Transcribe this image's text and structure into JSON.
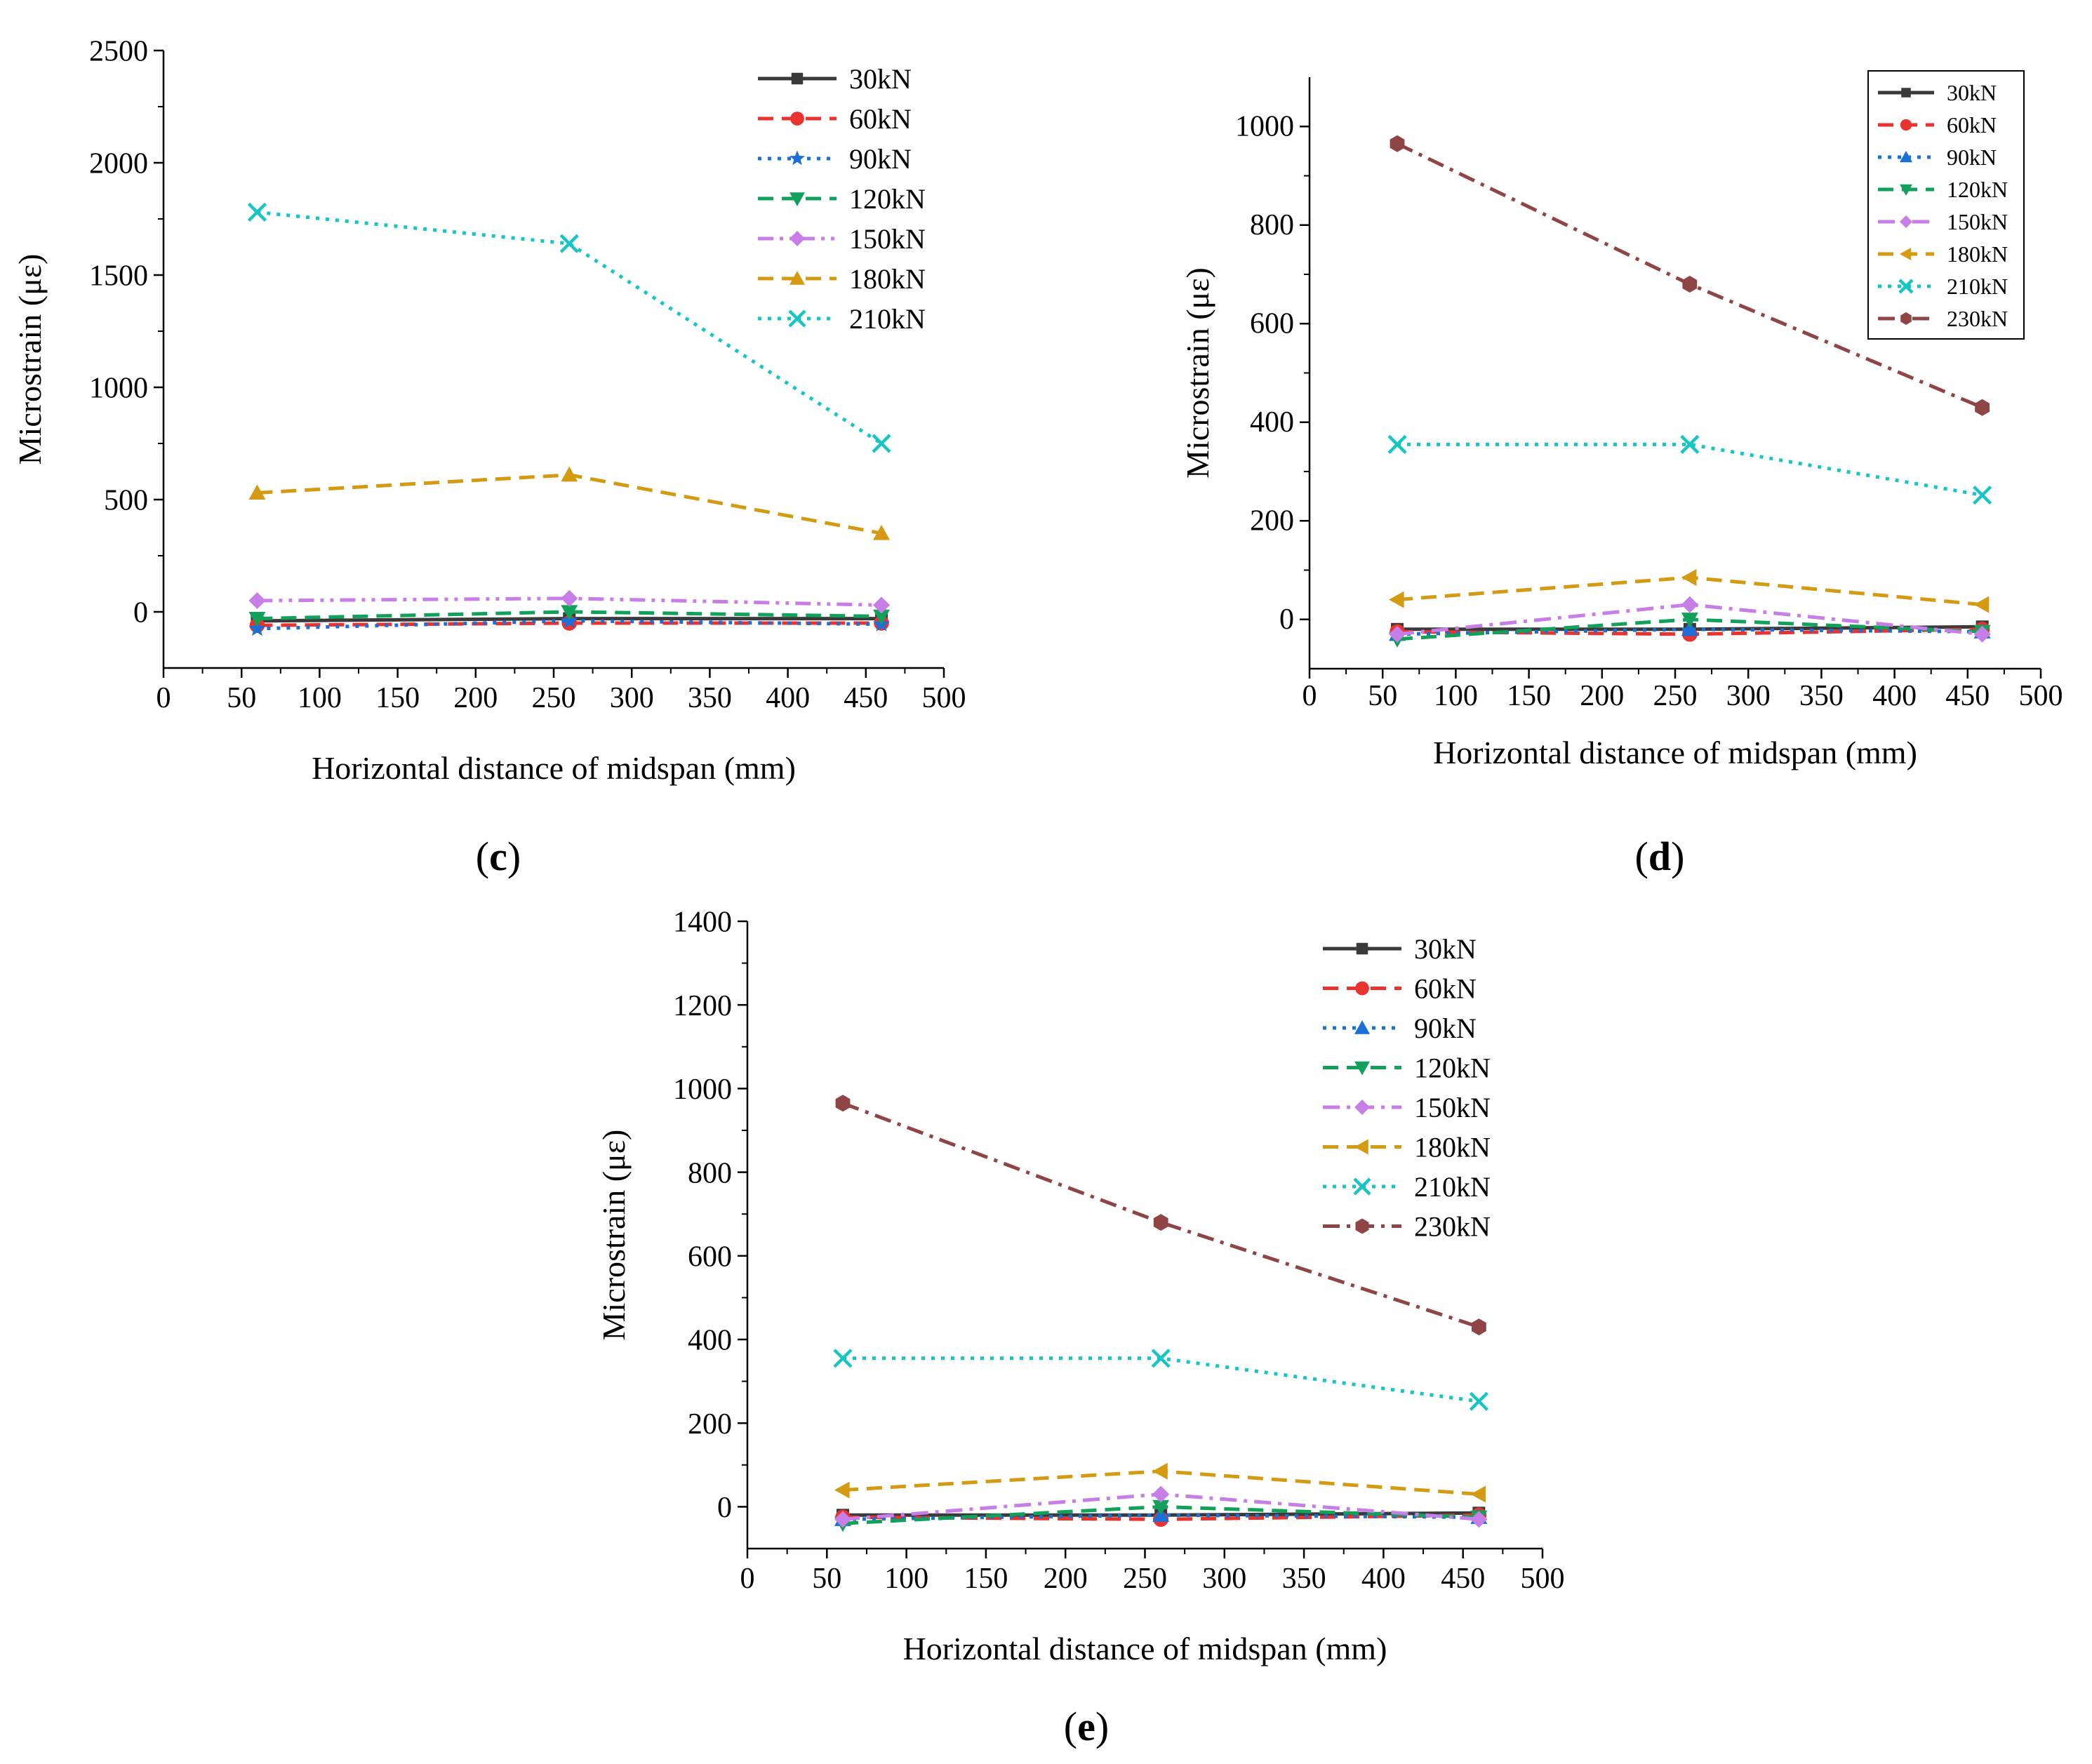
{
  "chart_data": [
    {
      "id": "c",
      "type": "line",
      "panel_label": "c",
      "xlabel": "Horizontal distance of midspan (mm)",
      "ylabel": "Microstrain (με)",
      "xlim": [
        0,
        500
      ],
      "ylim": [
        -250,
        2500
      ],
      "xticks": [
        0,
        50,
        100,
        150,
        200,
        250,
        300,
        350,
        400,
        450,
        500
      ],
      "yticks": [
        0,
        500,
        1000,
        1500,
        2000,
        2500
      ],
      "grid": false,
      "legend_placement": "top-right",
      "x": [
        60,
        260,
        460
      ],
      "series": [
        {
          "name": "30kN",
          "values": [
            -40,
            -30,
            -30
          ],
          "color": "#3a3a3a",
          "marker": "square",
          "dash": "solid"
        },
        {
          "name": "60kN",
          "values": [
            -60,
            -50,
            -50
          ],
          "color": "#e8332f",
          "marker": "circle",
          "dash": "dashed"
        },
        {
          "name": "90kN",
          "values": [
            -75,
            -40,
            -55
          ],
          "color": "#1a6fd8",
          "marker": "star",
          "dash": "dotted"
        },
        {
          "name": "120kN",
          "values": [
            -30,
            0,
            -20
          ],
          "color": "#12a15a",
          "marker": "triangle-down",
          "dash": "dashed"
        },
        {
          "name": "150kN",
          "values": [
            50,
            60,
            30
          ],
          "color": "#c77ee6",
          "marker": "diamond",
          "dash": "dashdotdot"
        },
        {
          "name": "180kN",
          "values": [
            530,
            610,
            350
          ],
          "color": "#d39a12",
          "marker": "triangle-up",
          "dash": "dashed"
        },
        {
          "name": "210kN",
          "values": [
            1780,
            1640,
            750
          ],
          "color": "#17c6c2",
          "marker": "x",
          "dash": "dotted"
        }
      ]
    },
    {
      "id": "d",
      "type": "line",
      "panel_label": "d",
      "xlabel": "Horizontal distance of midspan (mm)",
      "ylabel": "Microstrain (με)",
      "xlim": [
        0,
        500
      ],
      "ylim": [
        -100,
        1100
      ],
      "xticks": [
        0,
        50,
        100,
        150,
        200,
        250,
        300,
        350,
        400,
        450,
        500
      ],
      "yticks": [
        0,
        200,
        400,
        600,
        800,
        1000
      ],
      "grid": false,
      "legend_placement": "top-right",
      "x": [
        60,
        260,
        460
      ],
      "series": [
        {
          "name": "30kN",
          "values": [
            -20,
            -20,
            -15
          ],
          "color": "#3a3a3a",
          "marker": "square",
          "dash": "solid"
        },
        {
          "name": "60kN",
          "values": [
            -25,
            -30,
            -20
          ],
          "color": "#e8332f",
          "marker": "circle",
          "dash": "dashed"
        },
        {
          "name": "90kN",
          "values": [
            -30,
            -20,
            -25
          ],
          "color": "#1a6fd8",
          "marker": "triangle-up",
          "dash": "dotted"
        },
        {
          "name": "120kN",
          "values": [
            -40,
            0,
            -25
          ],
          "color": "#12a15a",
          "marker": "triangle-down",
          "dash": "dashed"
        },
        {
          "name": "150kN",
          "values": [
            -30,
            30,
            -30
          ],
          "color": "#c77ee6",
          "marker": "diamond",
          "dash": "dashdot"
        },
        {
          "name": "180kN",
          "values": [
            40,
            85,
            30
          ],
          "color": "#d39a12",
          "marker": "triangle-left",
          "dash": "dashed"
        },
        {
          "name": "210kN",
          "values": [
            355,
            355,
            252
          ],
          "color": "#17c6c2",
          "marker": "x",
          "dash": "dotted"
        },
        {
          "name": "230kN",
          "values": [
            965,
            680,
            430
          ],
          "color": "#8f4545",
          "marker": "hexagon",
          "dash": "dashdot"
        }
      ]
    },
    {
      "id": "e",
      "type": "line",
      "panel_label": "e",
      "xlabel": "Horizontal distance of midspan (mm)",
      "ylabel": "Microstrain (με)",
      "xlim": [
        0,
        500
      ],
      "ylim": [
        -100,
        1400
      ],
      "xticks": [
        0,
        50,
        100,
        150,
        200,
        250,
        300,
        350,
        400,
        450,
        500
      ],
      "yticks": [
        0,
        200,
        400,
        600,
        800,
        1000,
        1200,
        1400
      ],
      "grid": false,
      "legend_placement": "top-right",
      "x": [
        60,
        260,
        460
      ],
      "series": [
        {
          "name": "30kN",
          "values": [
            -20,
            -20,
            -15
          ],
          "color": "#3a3a3a",
          "marker": "square",
          "dash": "solid"
        },
        {
          "name": "60kN",
          "values": [
            -25,
            -30,
            -20
          ],
          "color": "#e8332f",
          "marker": "circle",
          "dash": "dashed"
        },
        {
          "name": "90kN",
          "values": [
            -30,
            -20,
            -25
          ],
          "color": "#1a6fd8",
          "marker": "triangle-up",
          "dash": "dotted"
        },
        {
          "name": "120kN",
          "values": [
            -40,
            0,
            -25
          ],
          "color": "#12a15a",
          "marker": "triangle-down",
          "dash": "dashed"
        },
        {
          "name": "150kN",
          "values": [
            -30,
            30,
            -30
          ],
          "color": "#c77ee6",
          "marker": "diamond",
          "dash": "dashdot"
        },
        {
          "name": "180kN",
          "values": [
            40,
            85,
            30
          ],
          "color": "#d39a12",
          "marker": "triangle-left",
          "dash": "dashed"
        },
        {
          "name": "210kN",
          "values": [
            355,
            355,
            252
          ],
          "color": "#17c6c2",
          "marker": "x",
          "dash": "dotted"
        },
        {
          "name": "230kN",
          "values": [
            965,
            680,
            430
          ],
          "color": "#8f4545",
          "marker": "hexagon",
          "dash": "dashdot"
        }
      ]
    }
  ]
}
